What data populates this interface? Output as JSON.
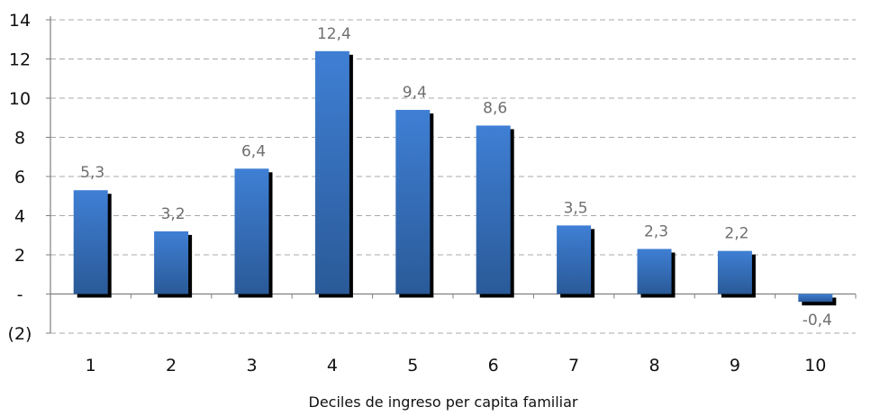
{
  "chart_data": {
    "type": "bar",
    "title": "",
    "xlabel": "Deciles de ingreso per capita familiar",
    "ylabel": "",
    "categories": [
      "1",
      "2",
      "3",
      "4",
      "5",
      "6",
      "7",
      "8",
      "9",
      "10"
    ],
    "values": [
      5.3,
      3.2,
      6.4,
      12.4,
      9.4,
      8.6,
      3.5,
      2.3,
      2.2,
      -0.4
    ],
    "data_labels": [
      "5,3",
      "3,2",
      "6,4",
      "12,4",
      "9,4",
      "8,6",
      "3,5",
      "2,3",
      "2,2",
      "-0,4"
    ],
    "yticks": [
      {
        "value": 14,
        "label": "14"
      },
      {
        "value": 12,
        "label": "12"
      },
      {
        "value": 10,
        "label": "10"
      },
      {
        "value": 8,
        "label": "8"
      },
      {
        "value": 6,
        "label": "6"
      },
      {
        "value": 4,
        "label": "4"
      },
      {
        "value": 2,
        "label": "2"
      },
      {
        "value": 0,
        "label": "-"
      },
      {
        "value": -2,
        "label": "(2)"
      }
    ],
    "ylim": [
      -2,
      14
    ],
    "grid": true,
    "legend": "none",
    "colors": {
      "bar_top": "#3f7fd4",
      "bar_bottom": "#2a5a98",
      "shadow": "#000000",
      "grid": "#a8a8a8",
      "axis": "#7f7f7f",
      "data_label": "#6f6f6f"
    }
  }
}
